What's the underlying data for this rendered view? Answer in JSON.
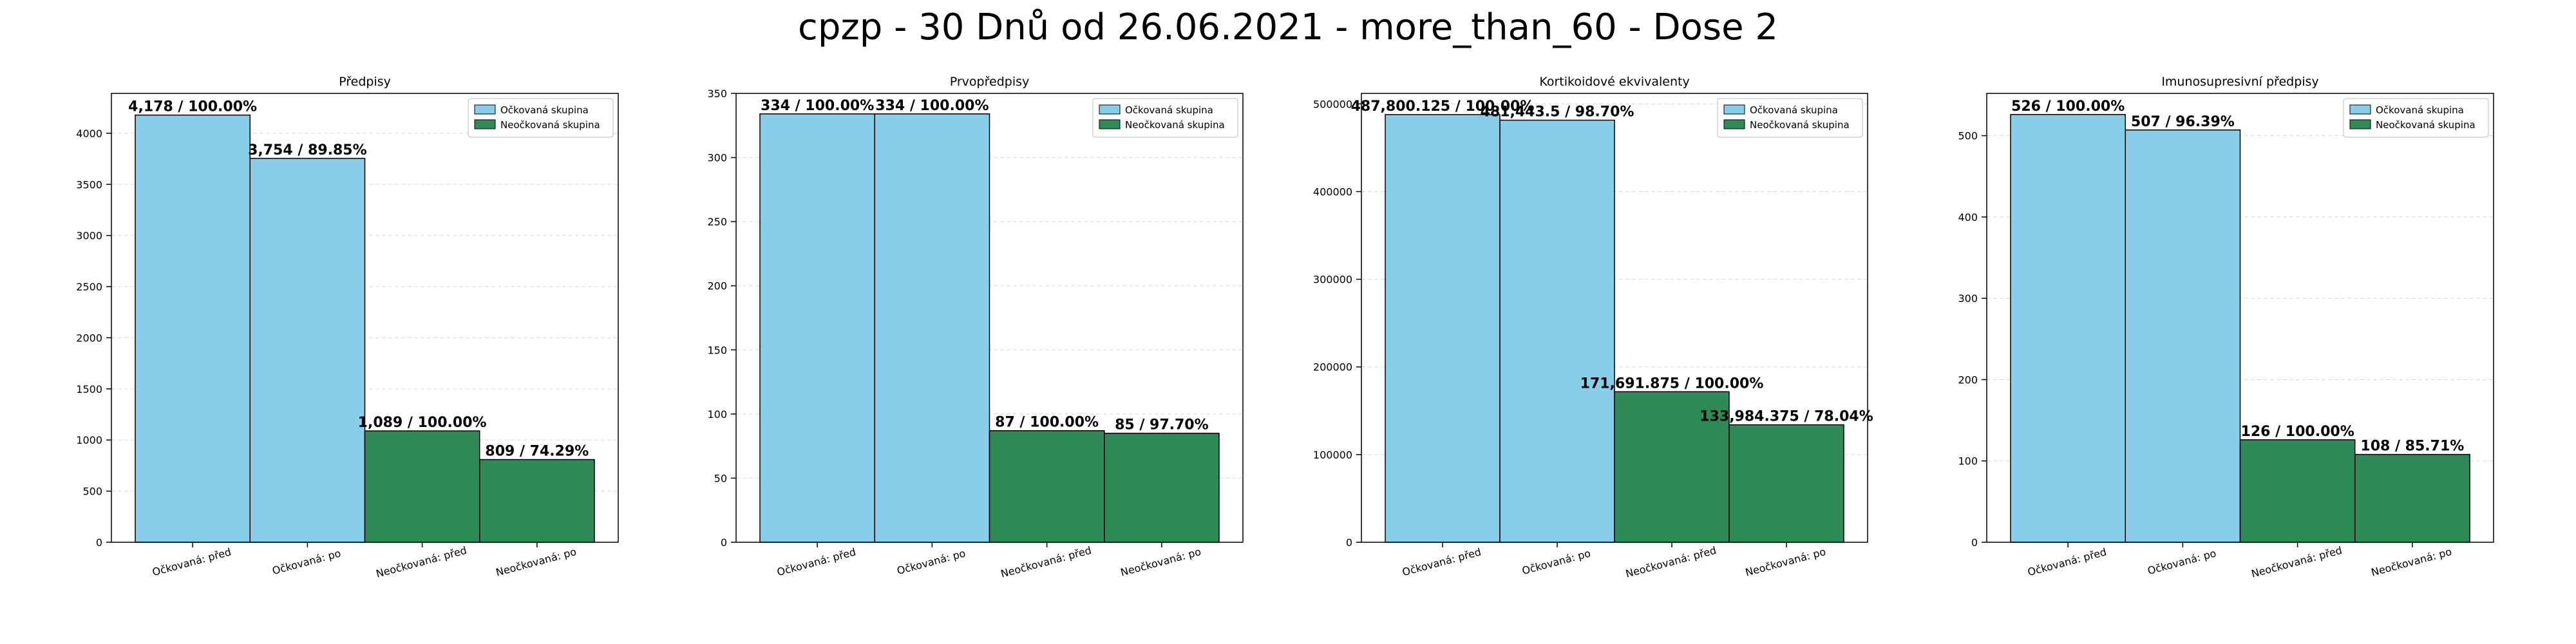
{
  "figure": {
    "title": "cpzp - 30 Dnů od 26.06.2021 - more_than_60 - Dose 2"
  },
  "colors": {
    "vaccinated": "#87CEEB",
    "unvaccinated": "#2E8B57",
    "edge": "#000000"
  },
  "chart_data": [
    {
      "type": "bar",
      "title": "Předpisy",
      "categories": [
        "Očkovaná: před",
        "Očkovaná: po",
        "Neočkovaná: před",
        "Neočkovaná: po"
      ],
      "values": [
        4178,
        3754,
        1089,
        809
      ],
      "data_labels": [
        "4,178 / 100.00%",
        "3,754 / 89.85%",
        "1,089 / 100.00%",
        "809 / 74.29%"
      ],
      "ylim": [
        0,
        4390
      ],
      "yticks": [
        0,
        500,
        1000,
        1500,
        2000,
        2500,
        3000,
        3500,
        4000
      ],
      "legend": [
        "Očkovaná skupina",
        "Neočkovaná skupina"
      ],
      "legend_position": "top-right",
      "grid": true
    },
    {
      "type": "bar",
      "title": "Prvopředpisy",
      "categories": [
        "Očkovaná: před",
        "Očkovaná: po",
        "Neočkovaná: před",
        "Neočkovaná: po"
      ],
      "values": [
        334,
        334,
        87,
        85
      ],
      "data_labels": [
        "334 / 100.00%",
        "334 / 100.00%",
        "87 / 100.00%",
        "85 / 97.70%"
      ],
      "ylim": [
        0,
        350
      ],
      "yticks": [
        0,
        50,
        100,
        150,
        200,
        250,
        300,
        350
      ],
      "legend": [
        "Očkovaná skupina",
        "Neočkovaná skupina"
      ],
      "legend_position": "top-right",
      "grid": true
    },
    {
      "type": "bar",
      "title": "Kortikoidové ekvivalenty",
      "categories": [
        "Očkovaná: před",
        "Očkovaná: po",
        "Neočkovaná: před",
        "Neočkovaná: po"
      ],
      "values": [
        487800.125,
        481443.5,
        171691.875,
        133984.375
      ],
      "data_labels": [
        "487,800.125 / 100.00%",
        "481,443.5 / 98.70%",
        "171,691.875 / 100.00%",
        "133,984.375 / 78.04%"
      ],
      "ylim": [
        0,
        512000
      ],
      "yticks": [
        0,
        100000,
        200000,
        300000,
        400000,
        500000
      ],
      "legend": [
        "Očkovaná skupina",
        "Neočkovaná skupina"
      ],
      "legend_position": "top-right",
      "grid": true
    },
    {
      "type": "bar",
      "title": "Imunosupresivní předpisy",
      "categories": [
        "Očkovaná: před",
        "Očkovaná: po",
        "Neočkovaná: před",
        "Neočkovaná: po"
      ],
      "values": [
        526,
        507,
        126,
        108
      ],
      "data_labels": [
        "526 / 100.00%",
        "507 / 96.39%",
        "126 / 100.00%",
        "108 / 85.71%"
      ],
      "ylim": [
        0,
        552
      ],
      "yticks": [
        0,
        100,
        200,
        300,
        400,
        500
      ],
      "legend": [
        "Očkovaná skupina",
        "Neočkovaná skupina"
      ],
      "legend_position": "top-right",
      "grid": true
    }
  ]
}
